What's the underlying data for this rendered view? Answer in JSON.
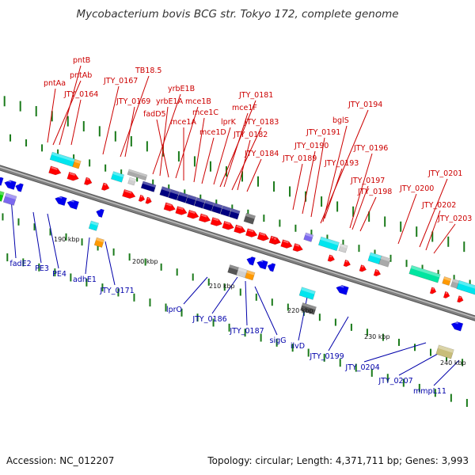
{
  "title": "Mycobacterium bovis BCG str. Tokyo 172, complete genome",
  "accession": "Accession: NC_012207",
  "topology": "Topology: circular; Length: 4,371,711 bp; Genes: 3,993",
  "colors": {
    "forward_label": "#cc0000",
    "reverse_label": "#0000aa",
    "tick": "#1a7a1a",
    "backbone": "#808080"
  },
  "kbp_labels": [
    "190 kbp",
    "200 kbp",
    "210 kbp",
    "220 kbp",
    "230 kbp",
    "240 kbp"
  ],
  "forward_labels": [
    "pntAa",
    "pntAb",
    "pntB",
    "JTY_0164",
    "JTY_0167",
    "TB18.5",
    "JTY_0169",
    "yrbE1B",
    "yrbE1A",
    "fadD5",
    "mce1B",
    "mce1A",
    "mce1C",
    "mce1D",
    "lprK",
    "JTY_0181",
    "mce1F",
    "JTY_0183",
    "JTY_0182",
    "JTY_0184",
    "JTY_0194",
    "bglS",
    "JTY_0191",
    "JTY_0190",
    "JTY_0189",
    "JTY_0193",
    "JTY_0196",
    "JTY_0197",
    "JTY_0198",
    "JTY_0200",
    "JTY_0201",
    "JTY_0202",
    "JTY_0203"
  ],
  "reverse_labels": [
    "fadE2",
    "PE3",
    "PE4",
    "adhE1",
    "JTY_0171",
    "lprO",
    "JTY_0186",
    "JTY_0187",
    "sigG",
    "ilvD",
    "JTY_0199",
    "JTY_0204",
    "JTY_0207",
    "mmpL11"
  ]
}
